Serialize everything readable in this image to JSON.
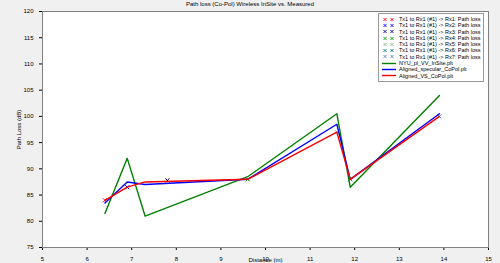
{
  "chart_data": {
    "type": "line",
    "title": "Path loss (Co-Pol) Wireless InSite vs. Measured",
    "x_label": "Distance (m)",
    "y_label": "Path Loss (dB)",
    "xlim": [
      5,
      15
    ],
    "xticks": [
      5,
      6,
      7,
      8,
      9,
      10,
      11,
      12,
      13,
      14,
      15
    ],
    "ylim": [
      75,
      120
    ],
    "yticks": [
      75,
      80,
      85,
      90,
      95,
      100,
      105,
      110,
      115,
      120
    ],
    "grid": false,
    "legend": "upper right",
    "series": [
      {
        "name": "Tx1 to Rx1 (#1) -> Rx1: Path loss",
        "type": "scatter",
        "marker": "x",
        "color": "#ff0000",
        "x": [
          6.4
        ],
        "values": [
          84
        ]
      },
      {
        "name": "Tx1 to Rx1 (#1) -> Rx2: Path loss",
        "type": "scatter",
        "marker": "x",
        "color": "#0000ff",
        "x": [
          6.9
        ],
        "values": [
          86.5
        ]
      },
      {
        "name": "Tx1 to Rx1 (#1) -> Rx3: Path loss",
        "type": "scatter",
        "marker": "x",
        "color": "#000080",
        "x": [
          7.8
        ],
        "values": [
          87.8
        ]
      },
      {
        "name": "Tx1 to Rx1 (#1) -> Rx4: Path loss",
        "type": "scatter",
        "marker": "x",
        "color": "#00a000",
        "x": [
          9.6
        ],
        "values": [
          88
        ]
      },
      {
        "name": "Tx1 to Rx1 (#1) -> Rx5: Path loss",
        "type": "scatter",
        "marker": "x",
        "color": "#80c080",
        "x": [
          11.6
        ],
        "values": [
          97
        ]
      },
      {
        "name": "Tx1 to Rx1 (#1) -> Rx6: Path loss",
        "type": "scatter",
        "marker": "x",
        "color": "#008080",
        "x": [
          11.9
        ],
        "values": [
          88
        ]
      },
      {
        "name": "Tx1 to Rx1 (#1) -> Rx7: Path loss",
        "type": "scatter",
        "marker": "x",
        "color": "#6080c0",
        "x": [
          13.9
        ],
        "values": [
          100
        ]
      },
      {
        "name": "NYU_pl_VV_InSite.plt",
        "type": "line",
        "line_style": "solid",
        "color": "#008000",
        "x": [
          6.4,
          6.9,
          7.3,
          9.6,
          11.6,
          11.9,
          13.9
        ],
        "values": [
          81.5,
          92,
          81,
          88.5,
          100.5,
          86.5,
          104
        ]
      },
      {
        "name": "Aligned_specular_CoPol.plt",
        "type": "line",
        "line_style": "solid",
        "color": "#0000ff",
        "x": [
          6.4,
          6.9,
          7.3,
          9.6,
          11.6,
          11.9,
          13.9
        ],
        "values": [
          83.5,
          87.5,
          87,
          88,
          98.5,
          88,
          100.5
        ]
      },
      {
        "name": "Aligned_VS_CoPol.plt",
        "type": "line",
        "line_style": "solid",
        "color": "#ff0000",
        "x": [
          6.4,
          6.9,
          7.3,
          9.6,
          11.6,
          11.9,
          13.9
        ],
        "values": [
          84,
          86.5,
          87.5,
          88,
          97,
          88,
          100
        ]
      }
    ]
  }
}
